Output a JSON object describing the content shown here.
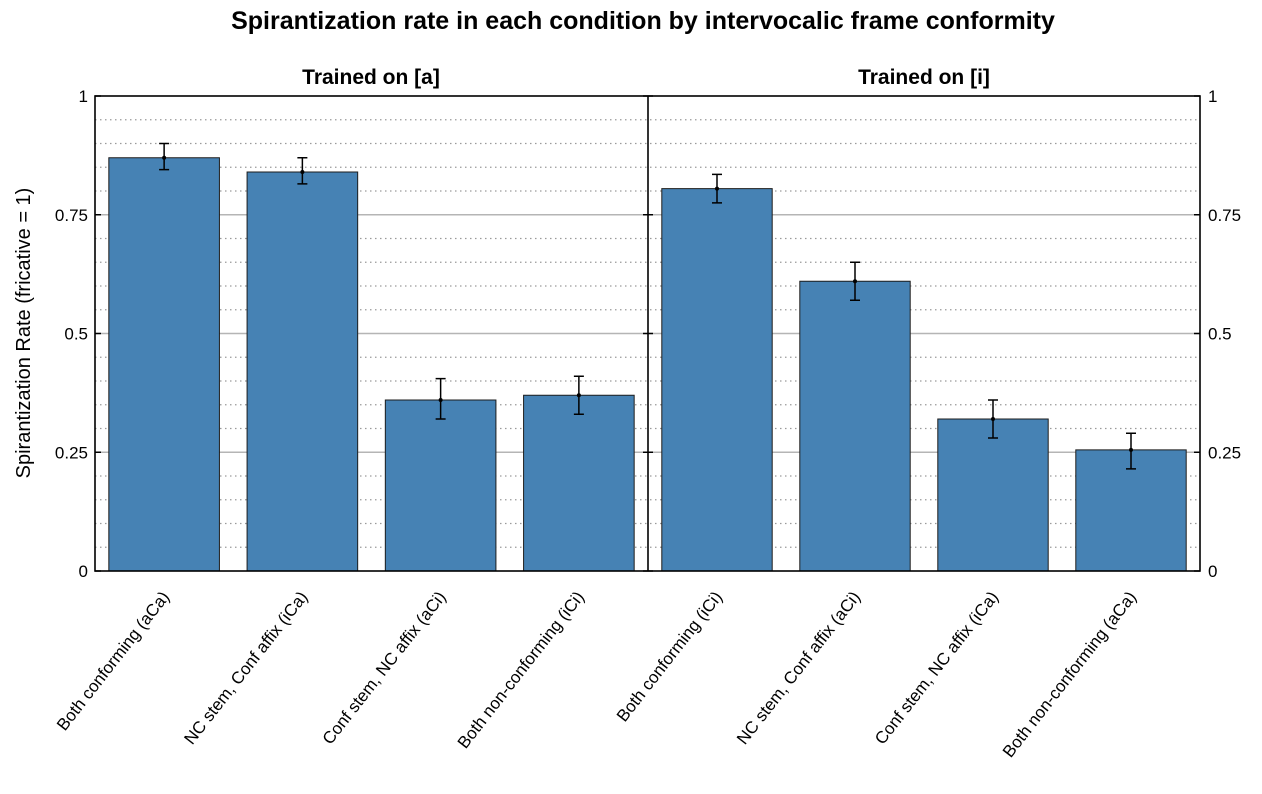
{
  "chart_data": {
    "type": "bar",
    "title": "Spirantization rate in each condition by intervocalic frame conformity",
    "ylabel": "Spirantization Rate (fricative = 1)",
    "ylim": [
      0,
      1
    ],
    "yticks": [
      0,
      0.25,
      0.5,
      0.75,
      1
    ],
    "ytick_labels": [
      "0",
      "0.25",
      "0.5",
      "0.75",
      "1"
    ],
    "grid": "major solid, minor dotted",
    "bar_color": "#4682b4",
    "panels": [
      {
        "title": "Trained on [a]",
        "categories": [
          "Both conforming (aCa)",
          "NC stem, Conf affix (iCa)",
          "Conf stem, NC affix (aCi)",
          "Both non-conforming (iCi)"
        ],
        "values": [
          0.87,
          0.84,
          0.36,
          0.37
        ],
        "error_low": [
          0.845,
          0.815,
          0.32,
          0.33
        ],
        "error_high": [
          0.9,
          0.87,
          0.405,
          0.41
        ]
      },
      {
        "title": "Trained on [i]",
        "categories": [
          "Both conforming (iCi)",
          "NC stem, Conf affix (aCi)",
          "Conf stem, NC affix (iCa)",
          "Both non-conforming (aCa)"
        ],
        "values": [
          0.805,
          0.61,
          0.32,
          0.255
        ],
        "error_low": [
          0.775,
          0.57,
          0.28,
          0.215
        ],
        "error_high": [
          0.835,
          0.65,
          0.36,
          0.29
        ]
      }
    ]
  }
}
